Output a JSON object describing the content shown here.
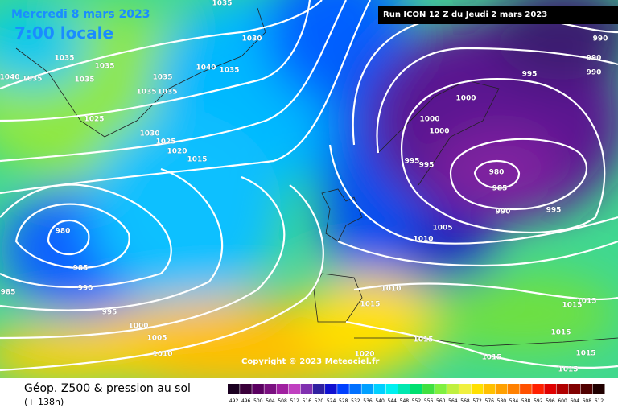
{
  "header": {
    "date": "Mercredi 8 mars 2023",
    "time": "7:00 locale",
    "run": "Run ICON 12 Z du Jeudi 2 mars 2023"
  },
  "copyright": "Copyright © 2023 Meteociel.fr",
  "footer": {
    "title": "Géop. Z500 & pression au sol",
    "lead": "(+ 138h)"
  },
  "scale": {
    "values": [
      492,
      496,
      500,
      504,
      508,
      512,
      516,
      520,
      524,
      528,
      532,
      536,
      540,
      544,
      548,
      552,
      556,
      560,
      564,
      568,
      572,
      576,
      580,
      584,
      588,
      592,
      596,
      600,
      604,
      608,
      612
    ],
    "colors": [
      "#1a0020",
      "#3a003a",
      "#5a0060",
      "#7a1080",
      "#a020a0",
      "#c040c0",
      "#8030b0",
      "#3020a0",
      "#1010d0",
      "#0040ff",
      "#0070ff",
      "#00a0ff",
      "#00d0ff",
      "#00f0f0",
      "#00e8b0",
      "#00e070",
      "#40e040",
      "#80f040",
      "#c0f040",
      "#f0f040",
      "#ffe000",
      "#ffc000",
      "#ffa000",
      "#ff8000",
      "#ff5000",
      "#ff2000",
      "#e00000",
      "#b00000",
      "#800000",
      "#500000",
      "#200000"
    ]
  },
  "isobar_labels": [
    "1035",
    "1040",
    "1035",
    "1035",
    "1035",
    "1035",
    "1035",
    "1035",
    "1035",
    "1040",
    "1035",
    "1030",
    "1025",
    "1030",
    "1025",
    "1020",
    "1015",
    "980",
    "985",
    "990",
    "995",
    "1000",
    "1005",
    "1010",
    "985",
    "995",
    "990",
    "990",
    "990",
    "1000",
    "1000",
    "1000",
    "995",
    "995",
    "980",
    "985",
    "990",
    "995",
    "1005",
    "1010",
    "1010",
    "1015",
    "1015",
    "1020",
    "1015",
    "1015",
    "1015",
    "1015",
    "1015",
    "1015"
  ]
}
